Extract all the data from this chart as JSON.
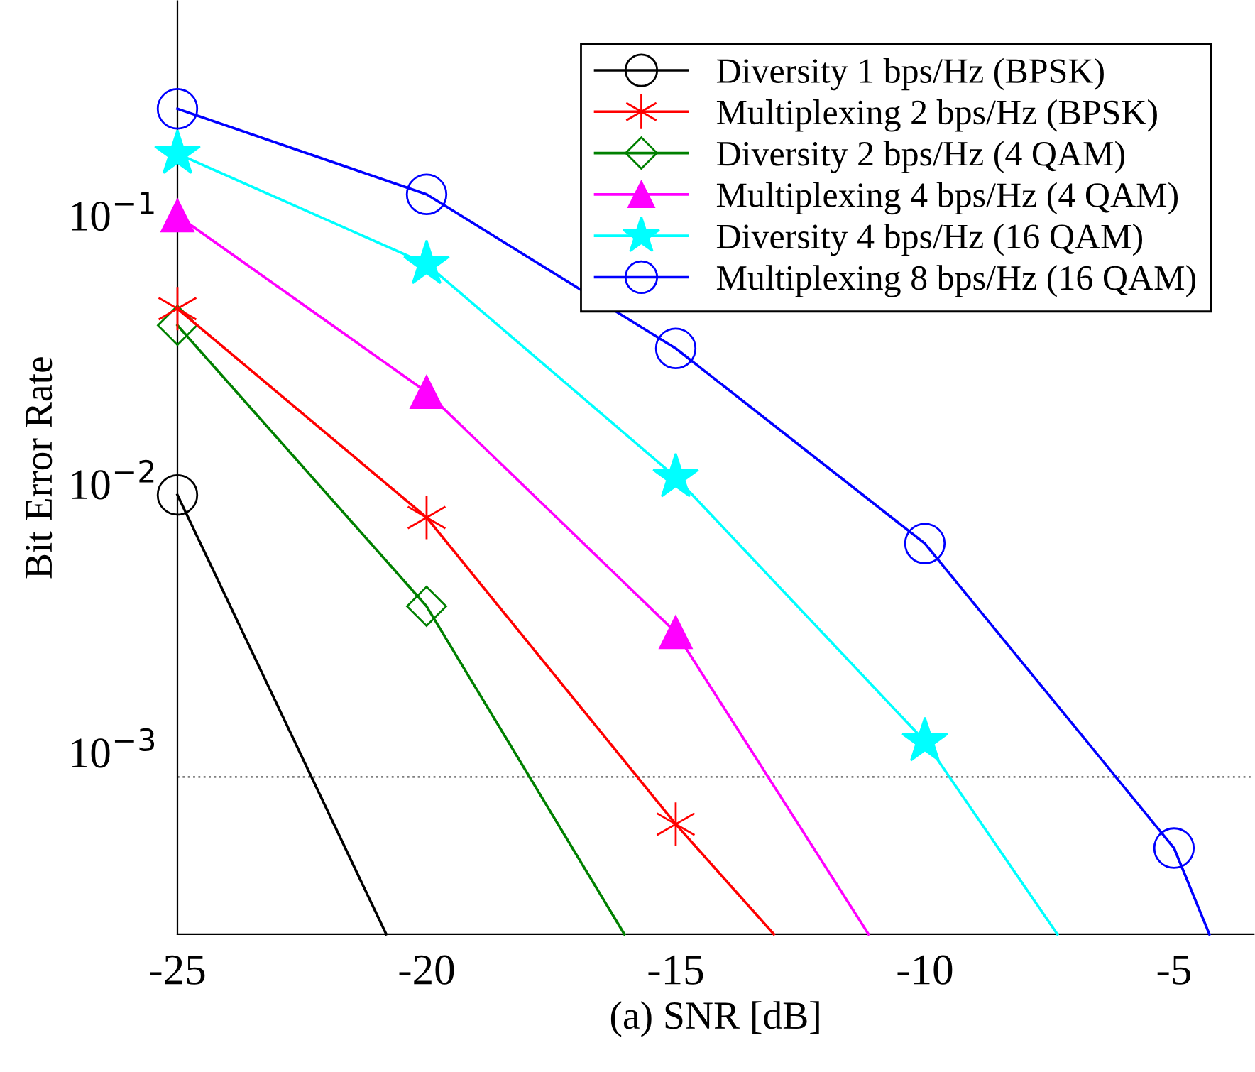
{
  "chart_data": {
    "type": "line",
    "xlabel": "(a) SNR [dB]",
    "ylabel": "Bit Error Rate",
    "log": "y",
    "xlim": [
      -25,
      -3.4
    ],
    "ylim": [
      0.00021,
      0.63
    ],
    "xticks": [
      -25,
      -20,
      -15,
      -10,
      -5
    ],
    "yticks": [
      {
        "value": 0.1,
        "label": "10$^{−1}$"
      },
      {
        "value": 0.01,
        "label": "10$^{−2}$"
      },
      {
        "value": 0.001,
        "label": "10$^{−3}$"
      }
    ],
    "legend": "top right",
    "grid": false,
    "ref_lines": [
      {
        "axis": "y",
        "value": 0.00081,
        "color": "#808080",
        "line_style": "dotted"
      }
    ],
    "series": [
      {
        "name": "Diversity 1 bps/Hz (BPSK)",
        "color": "#000000",
        "marker": "circle",
        "x": [
          -25,
          -20.81
        ],
        "values": [
          0.0091,
          0.00021
        ]
      },
      {
        "name": "Multiplexing 2 bps/Hz (BPSK)",
        "color": "#ff0000",
        "marker": "cross",
        "x": [
          -25,
          -20,
          -15,
          -13.03
        ],
        "values": [
          0.045,
          0.0075,
          0.00054,
          0.00021
        ]
      },
      {
        "name": "Diversity 2 bps/Hz (4 QAM)",
        "color": "#008000",
        "marker": "diamond",
        "x": [
          -25,
          -20,
          -16.03
        ],
        "values": [
          0.039,
          0.0035,
          0.00021
        ]
      },
      {
        "name": "Multiplexing 4 bps/Hz (4 QAM)",
        "color": "#ff00ff",
        "marker": "triangle",
        "x": [
          -25,
          -20,
          -15,
          -11.13
        ],
        "values": [
          0.1,
          0.022,
          0.0028,
          0.00021
        ]
      },
      {
        "name": "Diversity 4 bps/Hz (16 QAM)",
        "color": "#00ffff",
        "marker": "star",
        "x": [
          -25,
          -20,
          -15,
          -10,
          -7.34
        ],
        "values": [
          0.17,
          0.066,
          0.0106,
          0.0011,
          0.00021
        ]
      },
      {
        "name": "Multiplexing 8 bps/Hz (16 QAM)",
        "color": "#0000ff",
        "marker": "circle",
        "x": [
          -25,
          -20,
          -15,
          -10,
          -5,
          -4.29
        ],
        "values": [
          0.25,
          0.12,
          0.032,
          0.006,
          0.00044,
          0.00021
        ]
      }
    ]
  }
}
